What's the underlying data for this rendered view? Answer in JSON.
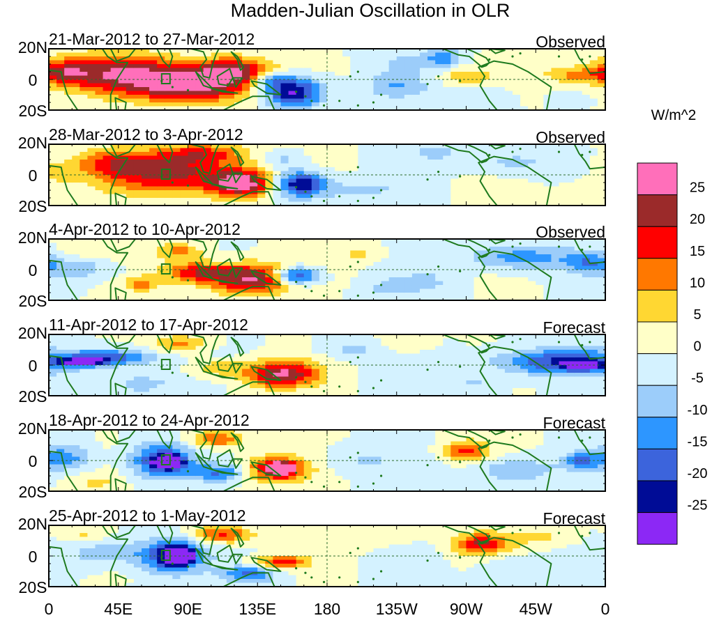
{
  "chart_data": {
    "type": "heatmap",
    "title": "Madden-Julian Oscillation in OLR",
    "colorbar": {
      "units": "W/m^2",
      "labels": [
        "25",
        "20",
        "15",
        "10",
        "5",
        "0",
        "-5",
        "-10",
        "-15",
        "-20",
        "-25"
      ],
      "levels": [
        25,
        20,
        15,
        10,
        5,
        0,
        -5,
        -10,
        -15,
        -20,
        -25
      ],
      "colors": [
        "#ff6fba",
        "#9b2a2a",
        "#ff0000",
        "#ff7800",
        "#ffd732",
        "#ffffc8",
        "#d4f2ff",
        "#9ccdfa",
        "#2d96ff",
        "#3c64dc",
        "#000c96",
        "#8c28f5"
      ]
    },
    "y_ticks": [
      "20N",
      "0",
      "20S"
    ],
    "x_ticks": [
      "0",
      "45E",
      "90E",
      "135E",
      "180",
      "135W",
      "90W",
      "45W",
      "0"
    ],
    "x_values": [
      0,
      45,
      90,
      135,
      180,
      225,
      270,
      315,
      360
    ],
    "ylim": [
      -20,
      20
    ],
    "panels": [
      {
        "period": "21-Mar-2012 to 27-Mar-2012",
        "status": "Observed",
        "anomalies": [
          {
            "lon": 45,
            "lat": 4,
            "value": 22,
            "sx": 30,
            "sy": 9
          },
          {
            "lon": 95,
            "lat": -4,
            "value": 26,
            "sx": 28,
            "sy": 8
          },
          {
            "lon": 120,
            "lat": 6,
            "value": 21,
            "sx": 18,
            "sy": 6
          },
          {
            "lon": 10,
            "lat": 5,
            "value": 14,
            "sx": 12,
            "sy": 6
          },
          {
            "lon": 158,
            "lat": -8,
            "value": -28,
            "sx": 14,
            "sy": 7
          },
          {
            "lon": 143,
            "lat": 0,
            "value": -14,
            "sx": 9,
            "sy": 4
          },
          {
            "lon": 255,
            "lat": 15,
            "value": -11,
            "sx": 8,
            "sy": 5
          },
          {
            "lon": 225,
            "lat": -4,
            "value": -9,
            "sx": 14,
            "sy": 6
          },
          {
            "lon": 280,
            "lat": -12,
            "value": -6,
            "sx": 12,
            "sy": 5
          },
          {
            "lon": 270,
            "lat": 2,
            "value": 8,
            "sx": 12,
            "sy": 4
          },
          {
            "lon": 340,
            "lat": 3,
            "value": 11,
            "sx": 14,
            "sy": 4
          },
          {
            "lon": 235,
            "lat": 12,
            "value": -5,
            "sx": 18,
            "sy": 5
          }
        ]
      },
      {
        "period": "28-Mar-2012 to 3-Apr-2012",
        "status": "Observed",
        "anomalies": [
          {
            "lon": 80,
            "lat": 2,
            "value": 22,
            "sx": 34,
            "sy": 10
          },
          {
            "lon": 125,
            "lat": -6,
            "value": 26,
            "sx": 14,
            "sy": 6
          },
          {
            "lon": 40,
            "lat": 8,
            "value": 10,
            "sx": 15,
            "sy": 6
          },
          {
            "lon": 100,
            "lat": 14,
            "value": 12,
            "sx": 18,
            "sy": 4
          },
          {
            "lon": 162,
            "lat": -6,
            "value": -27,
            "sx": 12,
            "sy": 6
          },
          {
            "lon": 150,
            "lat": 10,
            "value": -8,
            "sx": 10,
            "sy": 4
          },
          {
            "lon": 250,
            "lat": 15,
            "value": -7,
            "sx": 12,
            "sy": 4
          },
          {
            "lon": 200,
            "lat": -10,
            "value": -6,
            "sx": 20,
            "sy": 5
          },
          {
            "lon": 300,
            "lat": 8,
            "value": -7,
            "sx": 20,
            "sy": 6
          },
          {
            "lon": 5,
            "lat": 2,
            "value": 6,
            "sx": 10,
            "sy": 6
          },
          {
            "lon": 350,
            "lat": -10,
            "value": 5,
            "sx": 12,
            "sy": 4
          }
        ]
      },
      {
        "period": "4-Apr-2012 to 10-Apr-2012",
        "status": "Observed",
        "anomalies": [
          {
            "lon": 130,
            "lat": -6,
            "value": 26,
            "sx": 18,
            "sy": 7
          },
          {
            "lon": 95,
            "lat": -2,
            "value": 18,
            "sx": 15,
            "sy": 5
          },
          {
            "lon": 85,
            "lat": 12,
            "value": 12,
            "sx": 10,
            "sy": 4
          },
          {
            "lon": 60,
            "lat": -10,
            "value": 10,
            "sx": 8,
            "sy": 4
          },
          {
            "lon": 22,
            "lat": 10,
            "value": 5,
            "sx": 20,
            "sy": 5
          },
          {
            "lon": 160,
            "lat": -4,
            "value": -24,
            "sx": 10,
            "sy": 4
          },
          {
            "lon": 20,
            "lat": 2,
            "value": -9,
            "sx": 18,
            "sy": 6
          },
          {
            "lon": 305,
            "lat": 8,
            "value": -13,
            "sx": 25,
            "sy": 6
          },
          {
            "lon": 350,
            "lat": 5,
            "value": -11,
            "sx": 10,
            "sy": 5
          },
          {
            "lon": 245,
            "lat": -8,
            "value": -5,
            "sx": 15,
            "sy": 6
          },
          {
            "lon": 200,
            "lat": 10,
            "value": 6,
            "sx": 10,
            "sy": 4
          },
          {
            "lon": 220,
            "lat": -12,
            "value": -6,
            "sx": 12,
            "sy": 4
          }
        ]
      },
      {
        "period": "11-Apr-2012 to 17-Apr-2012",
        "status": "Forecast",
        "anomalies": [
          {
            "lon": 150,
            "lat": -6,
            "value": 26,
            "sx": 16,
            "sy": 6
          },
          {
            "lon": 110,
            "lat": -2,
            "value": 10,
            "sx": 12,
            "sy": 4
          },
          {
            "lon": 85,
            "lat": 14,
            "value": 12,
            "sx": 12,
            "sy": 4
          },
          {
            "lon": 40,
            "lat": 5,
            "value": -18,
            "sx": 20,
            "sy": 4
          },
          {
            "lon": 22,
            "lat": 2,
            "value": -24,
            "sx": 10,
            "sy": 2
          },
          {
            "lon": 330,
            "lat": 2,
            "value": -20,
            "sx": 30,
            "sy": 6
          },
          {
            "lon": 345,
            "lat": 0,
            "value": -26,
            "sx": 8,
            "sy": 2
          },
          {
            "lon": 60,
            "lat": -12,
            "value": -8,
            "sx": 15,
            "sy": 5
          },
          {
            "lon": 195,
            "lat": 10,
            "value": -6,
            "sx": 15,
            "sy": 4
          },
          {
            "lon": 230,
            "lat": 14,
            "value": 6,
            "sx": 10,
            "sy": 4
          },
          {
            "lon": 275,
            "lat": -12,
            "value": -6,
            "sx": 12,
            "sy": 4
          }
        ]
      },
      {
        "period": "18-Apr-2012 to 24-Apr-2012",
        "status": "Forecast",
        "anomalies": [
          {
            "lon": 72,
            "lat": 0,
            "value": -22,
            "sx": 14,
            "sy": 8
          },
          {
            "lon": 78,
            "lat": -1,
            "value": -26,
            "sx": 6,
            "sy": 3
          },
          {
            "lon": 10,
            "lat": 2,
            "value": -12,
            "sx": 12,
            "sy": 6
          },
          {
            "lon": 145,
            "lat": -6,
            "value": 20,
            "sx": 16,
            "sy": 6
          },
          {
            "lon": 150,
            "lat": -5,
            "value": 26,
            "sx": 6,
            "sy": 3
          },
          {
            "lon": 108,
            "lat": 14,
            "value": 16,
            "sx": 12,
            "sy": 4
          },
          {
            "lon": 112,
            "lat": -8,
            "value": -16,
            "sx": 14,
            "sy": 4
          },
          {
            "lon": 270,
            "lat": 6,
            "value": 16,
            "sx": 10,
            "sy": 5
          },
          {
            "lon": 300,
            "lat": -6,
            "value": -10,
            "sx": 20,
            "sy": 6
          },
          {
            "lon": 345,
            "lat": 0,
            "value": -14,
            "sx": 8,
            "sy": 4
          },
          {
            "lon": 200,
            "lat": 0,
            "value": -5,
            "sx": 20,
            "sy": 6
          },
          {
            "lon": 30,
            "lat": -14,
            "value": 6,
            "sx": 12,
            "sy": 4
          }
        ]
      },
      {
        "period": "25-Apr-2012 to 1-May-2012",
        "status": "Forecast",
        "anomalies": [
          {
            "lon": 80,
            "lat": 0,
            "value": -22,
            "sx": 14,
            "sy": 8
          },
          {
            "lon": 84,
            "lat": 0,
            "value": -26,
            "sx": 6,
            "sy": 4
          },
          {
            "lon": 40,
            "lat": 2,
            "value": -9,
            "sx": 20,
            "sy": 6
          },
          {
            "lon": 112,
            "lat": 14,
            "value": 17,
            "sx": 14,
            "sy": 4
          },
          {
            "lon": 150,
            "lat": -4,
            "value": 18,
            "sx": 12,
            "sy": 3
          },
          {
            "lon": 130,
            "lat": -12,
            "value": -16,
            "sx": 12,
            "sy": 4
          },
          {
            "lon": 280,
            "lat": 8,
            "value": 20,
            "sx": 12,
            "sy": 5
          },
          {
            "lon": 320,
            "lat": 12,
            "value": 6,
            "sx": 15,
            "sy": 4
          },
          {
            "lon": 200,
            "lat": 12,
            "value": 4,
            "sx": 25,
            "sy": 5
          },
          {
            "lon": 300,
            "lat": -8,
            "value": -6,
            "sx": 15,
            "sy": 6
          },
          {
            "lon": 20,
            "lat": 14,
            "value": 6,
            "sx": 10,
            "sy": 4
          }
        ]
      }
    ]
  }
}
